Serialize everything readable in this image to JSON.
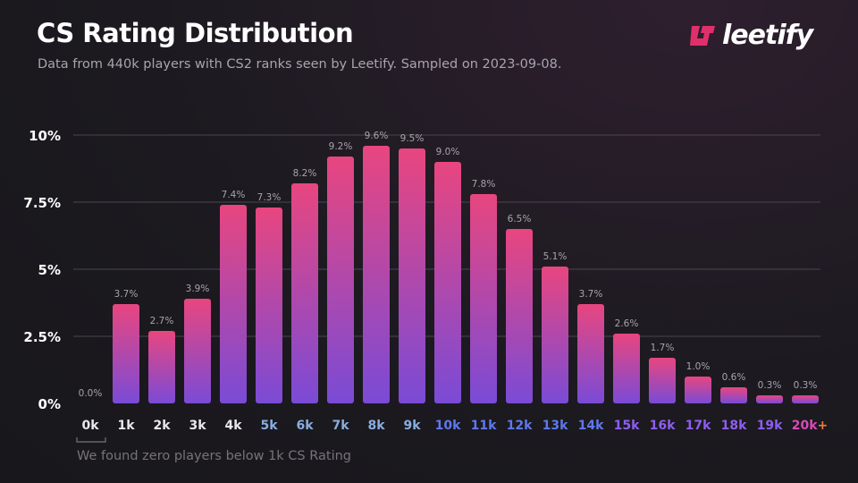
{
  "header": {
    "title": "CS Rating Distribution",
    "subtitle": "Data from 440k players with CS2 ranks seen by Leetify. Sampled on 2023-09-08.",
    "logo_text": "leetify"
  },
  "note": "We found zero players below 1k CS Rating",
  "chart_data": {
    "type": "bar",
    "title": "CS Rating Distribution",
    "categories": [
      "0k",
      "1k",
      "2k",
      "3k",
      "4k",
      "5k",
      "6k",
      "7k",
      "8k",
      "9k",
      "10k",
      "11k",
      "12k",
      "13k",
      "14k",
      "15k",
      "16k",
      "17k",
      "18k",
      "19k",
      "20k"
    ],
    "last_category_suffix": "+",
    "values": [
      0.0,
      3.7,
      2.7,
      3.9,
      7.4,
      7.3,
      8.2,
      9.2,
      9.6,
      9.5,
      9.0,
      7.8,
      6.5,
      5.1,
      3.7,
      2.6,
      1.7,
      1.0,
      0.6,
      0.3,
      0.3
    ],
    "data_labels": [
      "0.0%",
      "3.7%",
      "2.7%",
      "3.9%",
      "7.4%",
      "7.3%",
      "8.2%",
      "9.2%",
      "9.6%",
      "9.5%",
      "9.0%",
      "7.8%",
      "6.5%",
      "5.1%",
      "3.7%",
      "2.6%",
      "1.7%",
      "1.0%",
      "0.6%",
      "0.3%",
      "0.3%"
    ],
    "yticks": [
      0,
      2.5,
      5,
      7.5,
      10
    ],
    "ytick_labels": [
      "0%",
      "2.5%",
      "5%",
      "7.5%",
      "10%"
    ],
    "ylim": [
      0,
      10
    ],
    "grid": true,
    "xlabel": "",
    "ylabel": "",
    "colors": {
      "bar_top": "#e8467f",
      "bar_bottom": "#7a4bd6",
      "tick_white": "#e8e8ee",
      "tick_blue_light": "#8aaee0",
      "tick_blue": "#5f78ee",
      "tick_purple": "#8f5ef0",
      "tick_pink": "#d94ab8",
      "plus": "#f0803a",
      "brand": "#e0306c"
    }
  }
}
